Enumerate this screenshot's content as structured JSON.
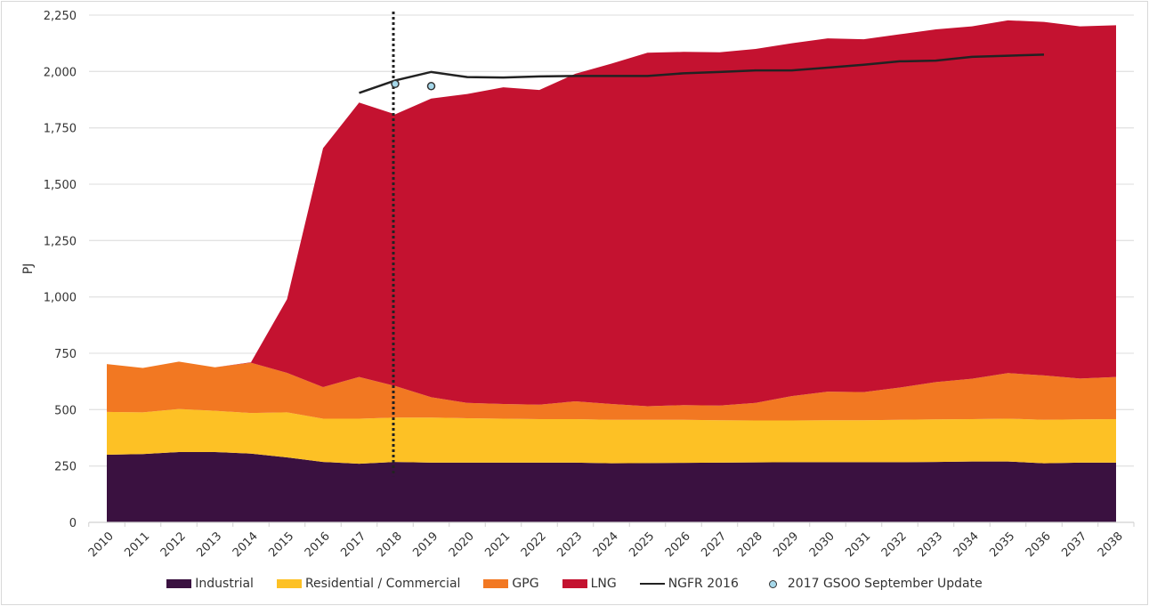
{
  "chart_data": {
    "type": "area",
    "stacked": true,
    "ylabel": "PJ",
    "xlabel": "",
    "ylim": [
      0,
      2250
    ],
    "yticks": [
      0,
      250,
      500,
      750,
      1000,
      1250,
      1500,
      1750,
      2000,
      2250
    ],
    "ytick_labels": [
      "0",
      "250",
      "500",
      "750",
      "1,000",
      "1,250",
      "1,500",
      "1,750",
      "2,000",
      "2,250"
    ],
    "grid": true,
    "legend_position": "bottom",
    "categories": [
      "2010",
      "2011",
      "2012",
      "2013",
      "2014",
      "2015",
      "2016",
      "2017",
      "2018",
      "2019",
      "2020",
      "2021",
      "2022",
      "2023",
      "2024",
      "2025",
      "2026",
      "2027",
      "2028",
      "2029",
      "2030",
      "2031",
      "2032",
      "2033",
      "2034",
      "2035",
      "2036",
      "2037",
      "2038"
    ],
    "series": [
      {
        "name": "Industrial",
        "color": "#3a1140",
        "values": [
          300,
          303,
          312,
          312,
          305,
          288,
          268,
          260,
          268,
          265,
          265,
          265,
          265,
          265,
          262,
          263,
          264,
          265,
          266,
          267,
          267,
          267,
          267,
          268,
          270,
          270,
          262,
          265,
          265
        ]
      },
      {
        "name": "Residential / Commercial",
        "color": "#fdc125",
        "values": [
          190,
          185,
          191,
          183,
          180,
          200,
          192,
          200,
          197,
          200,
          197,
          195,
          193,
          193,
          193,
          192,
          191,
          188,
          186,
          185,
          186,
          186,
          188,
          189,
          188,
          190,
          193,
          192,
          193
        ]
      },
      {
        "name": "GPG",
        "color": "#f27822",
        "values": [
          212,
          197,
          210,
          193,
          223,
          175,
          140,
          185,
          140,
          90,
          68,
          65,
          64,
          79,
          70,
          60,
          65,
          65,
          78,
          108,
          127,
          125,
          143,
          165,
          179,
          202,
          197,
          181,
          187
        ]
      },
      {
        "name": "LNG",
        "color": "#c41230",
        "values": [
          0,
          0,
          0,
          0,
          2,
          327,
          1060,
          1217,
          1205,
          1325,
          1370,
          1405,
          1396,
          1453,
          1510,
          1568,
          1567,
          1567,
          1570,
          1565,
          1567,
          1565,
          1567,
          1565,
          1563,
          1565,
          1568,
          1562,
          1560
        ]
      }
    ],
    "lines": [
      {
        "name": "NGFR 2016",
        "color": "#222222",
        "x": [
          "2017",
          "2018",
          "2019",
          "2020",
          "2021",
          "2022",
          "2023",
          "2024",
          "2025",
          "2026",
          "2027",
          "2028",
          "2029",
          "2030",
          "2031",
          "2032",
          "2033",
          "2034",
          "2035",
          "2036"
        ],
        "values": [
          1905,
          1960,
          1998,
          1975,
          1973,
          1978,
          1980,
          1980,
          1980,
          1992,
          1998,
          2005,
          2005,
          2017,
          2030,
          2045,
          2048,
          2065,
          2070,
          2075
        ]
      }
    ],
    "points": [
      {
        "name": "2017 GSOO September Update",
        "color": "#a6d8ea",
        "x": [
          "2018",
          "2019"
        ],
        "values": [
          1945,
          1935
        ]
      }
    ],
    "vertical_marker": {
      "x": "2018",
      "style": "dotted"
    }
  }
}
